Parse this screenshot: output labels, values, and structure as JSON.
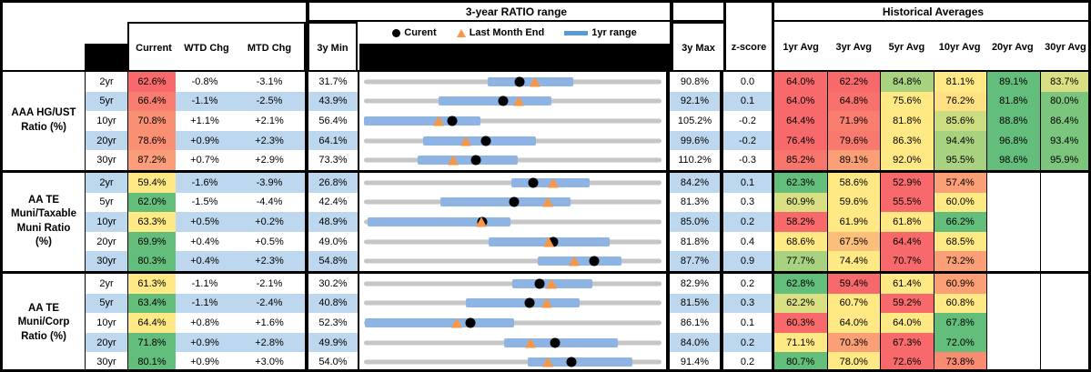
{
  "header": {
    "range_title": "3-year RATIO range",
    "historical_title": "Historical Averages",
    "current": "Current",
    "wtd": "WTD Chg",
    "mtd": "MTD Chg",
    "min3y": "3y Min",
    "max3y": "3y Max",
    "zscore": "z-score",
    "avg_cols": [
      "1yr Avg",
      "3yr Avg",
      "5yr Avg",
      "10yr Avg",
      "20yr Avg",
      "30yr Avg"
    ],
    "legend_current": "Curent",
    "legend_last_month": "Last Month End",
    "legend_1yr": "1yr range"
  },
  "colors": {
    "row_alt_blue": "#BDD7EE",
    "bar_blue": "#8DB4E3",
    "legend_bar_blue": "#5B9BD5",
    "track_gray": "#C6C6C6",
    "triangle_orange": "#F79646",
    "dot_black": "#000000",
    "heat_red": "#F8696B",
    "heat_orange": "#FBA076",
    "heat_yellow": "#FFE984",
    "heat_yellow_green": "#D9E083",
    "heat_light_green": "#A8D27F",
    "heat_green": "#63BE7B"
  },
  "chart_data": {
    "type": "table",
    "title": "3-year RATIO range",
    "legend": [
      "Curent",
      "Last Month End",
      "1yr range"
    ],
    "note": "range values in percent; yr1_low/yr1_high estimated from bar pixels; last_month_end = current - MTD chg",
    "groups": [
      {
        "label": "AAA HG/UST\nRatio (%)",
        "rows": [
          {
            "term": "2yr",
            "current": "62.6%",
            "current_bg": "#F8696B",
            "wtd": "-0.8%",
            "mtd": "-3.1%",
            "min3y": "31.7%",
            "max3y": "90.8%",
            "z": "0.0",
            "range": {
              "min": 31.7,
              "max": 90.8,
              "current": 62.6,
              "last_month_end": 65.7,
              "yr1_low": 56.3,
              "yr1_high": 73.2
            },
            "avgs": [
              [
                "64.0%",
                "#F8696B"
              ],
              [
                "62.2%",
                "#F8696B"
              ],
              [
                "84.8%",
                "#A8D27F"
              ],
              [
                "81.1%",
                "#FFE984"
              ],
              [
                "89.1%",
                "#63BE7B"
              ],
              [
                "83.7%",
                "#D9E083"
              ]
            ]
          },
          {
            "term": "5yr",
            "current": "66.4%",
            "current_bg": "#F87D70",
            "wtd": "-1.1%",
            "mtd": "-2.5%",
            "min3y": "43.9%",
            "max3y": "92.1%",
            "z": "0.1",
            "range": {
              "min": 43.9,
              "max": 92.1,
              "current": 66.4,
              "last_month_end": 68.9,
              "yr1_low": 56.0,
              "yr1_high": 74.3
            },
            "avgs": [
              [
                "64.0%",
                "#F8696B"
              ],
              [
                "64.8%",
                "#F8716C"
              ],
              [
                "75.6%",
                "#FFE984"
              ],
              [
                "76.2%",
                "#FFE083"
              ],
              [
                "81.8%",
                "#63BE7B"
              ],
              [
                "80.0%",
                "#7CC57D"
              ]
            ]
          },
          {
            "term": "10yr",
            "current": "70.8%",
            "current_bg": "#FA9073",
            "wtd": "+1.1%",
            "mtd": "+2.1%",
            "min3y": "56.4%",
            "max3y": "105.2%",
            "z": "-0.2",
            "range": {
              "min": 56.4,
              "max": 105.2,
              "current": 70.8,
              "last_month_end": 68.7,
              "yr1_low": 56.4,
              "yr1_high": 75.5
            },
            "avgs": [
              [
                "64.4%",
                "#F8696B"
              ],
              [
                "71.9%",
                "#F97E70"
              ],
              [
                "81.8%",
                "#FFE984"
              ],
              [
                "85.6%",
                "#CCDD81"
              ],
              [
                "88.8%",
                "#63BE7B"
              ],
              [
                "86.4%",
                "#7CC57D"
              ]
            ]
          },
          {
            "term": "20yr",
            "current": "78.6%",
            "current_bg": "#FA9073",
            "wtd": "+0.9%",
            "mtd": "+2.3%",
            "min3y": "64.1%",
            "max3y": "99.6%",
            "z": "-0.2",
            "range": {
              "min": 64.1,
              "max": 99.6,
              "current": 78.6,
              "last_month_end": 76.3,
              "yr1_low": 71.1,
              "yr1_high": 84.6
            },
            "avgs": [
              [
                "76.4%",
                "#F8696B"
              ],
              [
                "79.6%",
                "#F87A6F"
              ],
              [
                "86.3%",
                "#FFE984"
              ],
              [
                "94.4%",
                "#A8D27F"
              ],
              [
                "96.8%",
                "#63BE7B"
              ],
              [
                "93.4%",
                "#7CC57D"
              ]
            ]
          },
          {
            "term": "30yr",
            "current": "87.2%",
            "current_bg": "#FB9D78",
            "wtd": "+0.7%",
            "mtd": "+2.9%",
            "min3y": "73.3%",
            "max3y": "110.2%",
            "z": "-0.3",
            "range": {
              "min": 73.3,
              "max": 110.2,
              "current": 87.2,
              "last_month_end": 84.3,
              "yr1_low": 80.0,
              "yr1_high": 92.4
            },
            "avgs": [
              [
                "85.2%",
                "#F8756E"
              ],
              [
                "89.1%",
                "#FB9F76"
              ],
              [
                "92.0%",
                "#FFE984"
              ],
              [
                "95.5%",
                "#A8D27F"
              ],
              [
                "98.6%",
                "#63BE7B"
              ],
              [
                "95.9%",
                "#7CC57D"
              ]
            ]
          }
        ]
      },
      {
        "label": "AA TE\nMuni/Taxable\nMuni Ratio\n(%)",
        "rows": [
          {
            "term": "2yr",
            "current": "59.4%",
            "current_bg": "#FFE984",
            "wtd": "-1.6%",
            "mtd": "-3.9%",
            "min3y": "26.8%",
            "max3y": "84.2%",
            "z": "0.1",
            "range": {
              "min": 26.8,
              "max": 84.2,
              "current": 59.4,
              "last_month_end": 63.3,
              "yr1_low": 55.3,
              "yr1_high": 70.4
            },
            "avgs": [
              [
                "62.3%",
                "#63BE7B"
              ],
              [
                "58.6%",
                "#FFE984"
              ],
              [
                "52.9%",
                "#F8696B"
              ],
              [
                "57.4%",
                "#FBA076"
              ],
              [
                "",
                ""
              ],
              [
                "",
                ""
              ]
            ]
          },
          {
            "term": "5yr",
            "current": "62.0%",
            "current_bg": "#63BE7B",
            "wtd": "-1.5%",
            "mtd": "-4.4%",
            "min3y": "42.4%",
            "max3y": "81.3%",
            "z": "0.3",
            "range": {
              "min": 42.4,
              "max": 81.3,
              "current": 62.0,
              "last_month_end": 66.4,
              "yr1_low": 52.4,
              "yr1_high": 69.4
            },
            "avgs": [
              [
                "60.9%",
                "#D9E083"
              ],
              [
                "59.6%",
                "#FFE984"
              ],
              [
                "55.5%",
                "#F8696B"
              ],
              [
                "60.0%",
                "#FFE984"
              ],
              [
                "",
                ""
              ],
              [
                "",
                ""
              ]
            ]
          },
          {
            "term": "10yr",
            "current": "63.3%",
            "current_bg": "#FFE984",
            "wtd": "+0.5%",
            "mtd": "+0.2%",
            "min3y": "48.9%",
            "max3y": "85.0%",
            "z": "0.2",
            "range": {
              "min": 48.9,
              "max": 85.0,
              "current": 63.3,
              "last_month_end": 63.1,
              "yr1_low": 49.3,
              "yr1_high": 66.7
            },
            "avgs": [
              [
                "58.2%",
                "#F8696B"
              ],
              [
                "61.9%",
                "#FFE984"
              ],
              [
                "61.8%",
                "#FFE984"
              ],
              [
                "66.2%",
                "#63BE7B"
              ],
              [
                "",
                ""
              ],
              [
                "",
                ""
              ]
            ]
          },
          {
            "term": "20yr",
            "current": "69.9%",
            "current_bg": "#63BE7B",
            "wtd": "+0.4%",
            "mtd": "+0.5%",
            "min3y": "49.0%",
            "max3y": "81.8%",
            "z": "0.4",
            "range": {
              "min": 49.0,
              "max": 81.8,
              "current": 69.9,
              "last_month_end": 69.4,
              "yr1_low": 62.7,
              "yr1_high": 76.1
            },
            "avgs": [
              [
                "68.6%",
                "#FFE984"
              ],
              [
                "67.5%",
                "#FCBE7B"
              ],
              [
                "64.4%",
                "#F8696B"
              ],
              [
                "68.5%",
                "#FFE984"
              ],
              [
                "",
                ""
              ],
              [
                "",
                ""
              ]
            ]
          },
          {
            "term": "30yr",
            "current": "80.3%",
            "current_bg": "#63BE7B",
            "wtd": "+0.4%",
            "mtd": "+2.3%",
            "min3y": "54.8%",
            "max3y": "87.7%",
            "z": "0.9",
            "range": {
              "min": 54.8,
              "max": 87.7,
              "current": 80.3,
              "last_month_end": 78.0,
              "yr1_low": 74.0,
              "yr1_high": 83.3
            },
            "avgs": [
              [
                "77.7%",
                "#A8D27F"
              ],
              [
                "74.4%",
                "#FFE984"
              ],
              [
                "70.7%",
                "#F8696B"
              ],
              [
                "73.2%",
                "#FBA076"
              ],
              [
                "",
                ""
              ],
              [
                "",
                ""
              ]
            ]
          }
        ]
      },
      {
        "label": "AA TE\nMuni/Corp\nRatio (%)",
        "rows": [
          {
            "term": "2yr",
            "current": "61.3%",
            "current_bg": "#FFE984",
            "wtd": "-1.1%",
            "mtd": "-2.1%",
            "min3y": "30.2%",
            "max3y": "82.9%",
            "z": "0.2",
            "range": {
              "min": 30.2,
              "max": 82.9,
              "current": 61.3,
              "last_month_end": 63.4,
              "yr1_low": 56.4,
              "yr1_high": 70.6
            },
            "avgs": [
              [
                "62.8%",
                "#63BE7B"
              ],
              [
                "59.4%",
                "#F8696B"
              ],
              [
                "61.4%",
                "#FFE984"
              ],
              [
                "60.9%",
                "#FBA076"
              ],
              [
                "",
                ""
              ],
              [
                "",
                ""
              ]
            ]
          },
          {
            "term": "5yr",
            "current": "63.4%",
            "current_bg": "#63BE7B",
            "wtd": "-1.1%",
            "mtd": "-2.4%",
            "min3y": "40.8%",
            "max3y": "81.5%",
            "z": "0.3",
            "range": {
              "min": 40.8,
              "max": 81.5,
              "current": 63.4,
              "last_month_end": 65.8,
              "yr1_low": 54.7,
              "yr1_high": 70.3
            },
            "avgs": [
              [
                "62.2%",
                "#D9E083"
              ],
              [
                "60.7%",
                "#FFE984"
              ],
              [
                "59.2%",
                "#F8696B"
              ],
              [
                "60.8%",
                "#FFE984"
              ],
              [
                "",
                ""
              ],
              [
                "",
                ""
              ]
            ]
          },
          {
            "term": "10yr",
            "current": "64.4%",
            "current_bg": "#FFE984",
            "wtd": "+0.8%",
            "mtd": "+1.6%",
            "min3y": "52.3%",
            "max3y": "86.1%",
            "z": "0.1",
            "range": {
              "min": 52.3,
              "max": 86.1,
              "current": 64.4,
              "last_month_end": 62.8,
              "yr1_low": 52.4,
              "yr1_high": 69.4
            },
            "avgs": [
              [
                "60.3%",
                "#F8696B"
              ],
              [
                "64.0%",
                "#FFE984"
              ],
              [
                "64.0%",
                "#FFE984"
              ],
              [
                "67.8%",
                "#63BE7B"
              ],
              [
                "",
                ""
              ],
              [
                "",
                ""
              ]
            ]
          },
          {
            "term": "20yr",
            "current": "71.8%",
            "current_bg": "#63BE7B",
            "wtd": "+0.9%",
            "mtd": "+2.8%",
            "min3y": "49.9%",
            "max3y": "84.0%",
            "z": "0.2",
            "range": {
              "min": 49.9,
              "max": 84.0,
              "current": 71.8,
              "last_month_end": 69.0,
              "yr1_low": 66.0,
              "yr1_high": 79.0
            },
            "avgs": [
              [
                "71.1%",
                "#FFE984"
              ],
              [
                "70.3%",
                "#FBA076"
              ],
              [
                "67.3%",
                "#F8696B"
              ],
              [
                "72.0%",
                "#63BE7B"
              ],
              [
                "",
                ""
              ],
              [
                "",
                ""
              ]
            ]
          },
          {
            "term": "30yr",
            "current": "80.1%",
            "current_bg": "#63BE7B",
            "wtd": "+0.9%",
            "mtd": "+3.0%",
            "min3y": "54.0%",
            "max3y": "91.4%",
            "z": "0.2",
            "range": {
              "min": 54.0,
              "max": 91.4,
              "current": 80.1,
              "last_month_end": 77.1,
              "yr1_low": 74.6,
              "yr1_high": 87.8
            },
            "avgs": [
              [
                "80.7%",
                "#63BE7B"
              ],
              [
                "78.0%",
                "#FFE984"
              ],
              [
                "72.6%",
                "#F8696B"
              ],
              [
                "73.8%",
                "#F98B72"
              ],
              [
                "",
                ""
              ],
              [
                "",
                ""
              ]
            ]
          }
        ]
      }
    ]
  }
}
